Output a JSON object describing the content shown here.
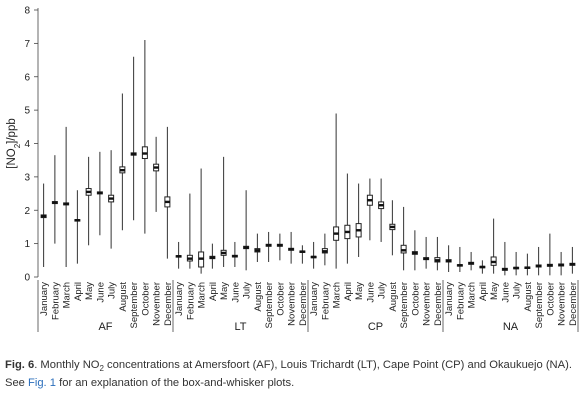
{
  "chart_data": {
    "type": "box",
    "ylabel_main": "[NO",
    "ylabel_sub": "2",
    "ylabel_tail": "]/ppb",
    "ylim": [
      0,
      8
    ],
    "yticks": [
      "0",
      "1",
      "2",
      "3",
      "4",
      "5",
      "6",
      "7",
      "8"
    ],
    "months": [
      "January",
      "February",
      "March",
      "April",
      "May",
      "June",
      "July",
      "August",
      "September",
      "October",
      "November",
      "December"
    ],
    "groups": [
      {
        "name": "AF",
        "boxes": [
          {
            "whisker": [
              0.3,
              2.8
            ],
            "q1": 1.78,
            "median": 1.82,
            "q3": 1.86
          },
          {
            "whisker": [
              1.0,
              3.65
            ],
            "q1": 2.2,
            "median": 2.23,
            "q3": 2.26
          },
          {
            "whisker": [
              0.3,
              4.5
            ],
            "q1": 2.16,
            "median": 2.19,
            "q3": 2.22
          },
          {
            "whisker": [
              0.4,
              2.6
            ],
            "q1": 1.68,
            "median": 1.7,
            "q3": 1.72
          },
          {
            "whisker": [
              0.95,
              3.6
            ],
            "q1": 2.45,
            "median": 2.55,
            "q3": 2.65
          },
          {
            "whisker": [
              1.25,
              3.75
            ],
            "q1": 2.49,
            "median": 2.52,
            "q3": 2.55
          },
          {
            "whisker": [
              0.85,
              3.8
            ],
            "q1": 2.25,
            "median": 2.35,
            "q3": 2.45
          },
          {
            "whisker": [
              1.4,
              5.5
            ],
            "q1": 3.12,
            "median": 3.2,
            "q3": 3.3
          },
          {
            "whisker": [
              1.7,
              6.6
            ],
            "q1": 3.65,
            "median": 3.68,
            "q3": 3.72
          },
          {
            "whisker": [
              1.3,
              7.1
            ],
            "q1": 3.55,
            "median": 3.7,
            "q3": 3.9
          },
          {
            "whisker": [
              1.95,
              4.2
            ],
            "q1": 3.18,
            "median": 3.28,
            "q3": 3.38
          },
          {
            "whisker": [
              0.55,
              4.5
            ],
            "q1": 2.1,
            "median": 2.25,
            "q3": 2.4
          }
        ]
      },
      {
        "name": "LT",
        "boxes": [
          {
            "whisker": [
              0.25,
              1.05
            ],
            "q1": 0.6,
            "median": 0.62,
            "q3": 0.64
          },
          {
            "whisker": [
              0.25,
              2.5
            ],
            "q1": 0.48,
            "median": 0.55,
            "q3": 0.65
          },
          {
            "whisker": [
              0.1,
              3.25
            ],
            "q1": 0.3,
            "median": 0.55,
            "q3": 0.75
          },
          {
            "whisker": [
              0.25,
              1.0
            ],
            "q1": 0.55,
            "median": 0.58,
            "q3": 0.62
          },
          {
            "whisker": [
              0.3,
              3.6
            ],
            "q1": 0.65,
            "median": 0.72,
            "q3": 0.8
          },
          {
            "whisker": [
              0.3,
              1.05
            ],
            "q1": 0.6,
            "median": 0.62,
            "q3": 0.65
          },
          {
            "whisker": [
              0.2,
              2.6
            ],
            "q1": 0.85,
            "median": 0.88,
            "q3": 0.92
          },
          {
            "whisker": [
              0.45,
              1.3
            ],
            "q1": 0.75,
            "median": 0.8,
            "q3": 0.85
          },
          {
            "whisker": [
              0.45,
              1.35
            ],
            "q1": 0.92,
            "median": 0.95,
            "q3": 0.98
          },
          {
            "whisker": [
              0.5,
              1.3
            ],
            "q1": 0.92,
            "median": 0.95,
            "q3": 0.98
          },
          {
            "whisker": [
              0.4,
              1.35
            ],
            "q1": 0.8,
            "median": 0.83,
            "q3": 0.86
          },
          {
            "whisker": [
              0.4,
              0.95
            ],
            "q1": 0.74,
            "median": 0.76,
            "q3": 0.78
          }
        ]
      },
      {
        "name": "CP",
        "boxes": [
          {
            "whisker": [
              0.25,
              1.05
            ],
            "q1": 0.58,
            "median": 0.6,
            "q3": 0.62
          },
          {
            "whisker": [
              0.35,
              1.3
            ],
            "q1": 0.72,
            "median": 0.77,
            "q3": 0.85
          },
          {
            "whisker": [
              0.25,
              4.9
            ],
            "q1": 1.1,
            "median": 1.3,
            "q3": 1.5
          },
          {
            "whisker": [
              0.4,
              3.1
            ],
            "q1": 1.15,
            "median": 1.35,
            "q3": 1.55
          },
          {
            "whisker": [
              0.6,
              2.8
            ],
            "q1": 1.2,
            "median": 1.4,
            "q3": 1.6
          },
          {
            "whisker": [
              1.1,
              2.95
            ],
            "q1": 2.15,
            "median": 2.3,
            "q3": 2.45
          },
          {
            "whisker": [
              1.05,
              2.95
            ],
            "q1": 2.05,
            "median": 2.15,
            "q3": 2.25
          },
          {
            "whisker": [
              0.65,
              2.3
            ],
            "q1": 1.42,
            "median": 1.5,
            "q3": 1.58
          },
          {
            "whisker": [
              0.2,
              2.1
            ],
            "q1": 0.72,
            "median": 0.8,
            "q3": 0.95
          },
          {
            "whisker": [
              0.2,
              1.4
            ],
            "q1": 0.68,
            "median": 0.72,
            "q3": 0.76
          },
          {
            "whisker": [
              0.25,
              1.2
            ],
            "q1": 0.52,
            "median": 0.55,
            "q3": 0.58
          },
          {
            "whisker": [
              0.2,
              1.2
            ],
            "q1": 0.45,
            "median": 0.5,
            "q3": 0.58
          }
        ]
      },
      {
        "name": "NA",
        "boxes": [
          {
            "whisker": [
              0.15,
              0.95
            ],
            "q1": 0.45,
            "median": 0.48,
            "q3": 0.52
          },
          {
            "whisker": [
              0.15,
              0.9
            ],
            "q1": 0.33,
            "median": 0.35,
            "q3": 0.37
          },
          {
            "whisker": [
              0.2,
              0.75
            ],
            "q1": 0.38,
            "median": 0.41,
            "q3": 0.44
          },
          {
            "whisker": [
              0.1,
              0.5
            ],
            "q1": 0.28,
            "median": 0.3,
            "q3": 0.32
          },
          {
            "whisker": [
              0.1,
              1.75
            ],
            "q1": 0.35,
            "median": 0.45,
            "q3": 0.6
          },
          {
            "whisker": [
              0.05,
              1.05
            ],
            "q1": 0.2,
            "median": 0.23,
            "q3": 0.26
          },
          {
            "whisker": [
              0.05,
              0.75
            ],
            "q1": 0.25,
            "median": 0.27,
            "q3": 0.29
          },
          {
            "whisker": [
              0.05,
              0.7
            ],
            "q1": 0.26,
            "median": 0.28,
            "q3": 0.3
          },
          {
            "whisker": [
              0.05,
              0.9
            ],
            "q1": 0.3,
            "median": 0.33,
            "q3": 0.36
          },
          {
            "whisker": [
              0.05,
              1.3
            ],
            "q1": 0.32,
            "median": 0.35,
            "q3": 0.38
          },
          {
            "whisker": [
              0.05,
              0.75
            ],
            "q1": 0.33,
            "median": 0.36,
            "q3": 0.39
          },
          {
            "whisker": [
              0.1,
              0.9
            ],
            "q1": 0.35,
            "median": 0.38,
            "q3": 0.41
          }
        ]
      }
    ]
  },
  "caption": {
    "fig_label": "Fig. 6",
    "text_a": ". Monthly NO",
    "text_sub": "2",
    "text_b": " concentrations at Amersfoort (AF), Louis Trichardt (LT), Cape Point (CP) and Okaukuejo (NA).",
    "text_c": "See ",
    "link": "Fig. 1",
    "text_d": " for an explanation of the box-and-whisker plots."
  }
}
